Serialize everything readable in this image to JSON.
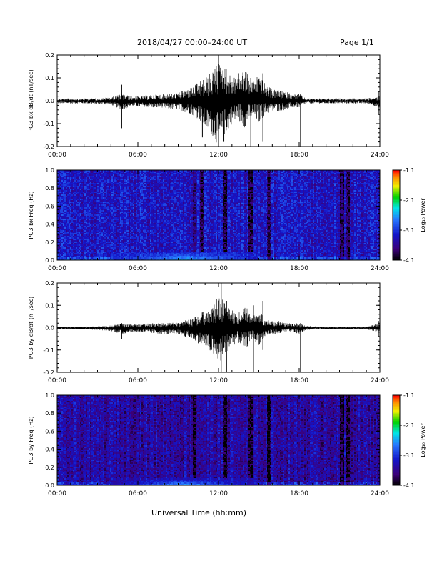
{
  "header": {
    "title": "2018/04/27  00:00–24:00 UT",
    "page": "Page 1/1"
  },
  "xlabel": "Universal Time (hh:mm)",
  "chart_data": [
    {
      "type": "line",
      "ylabel": "PG3 bx dB/dt (nT/sec)",
      "xlim": [
        0,
        24
      ],
      "ylim": [
        -0.2,
        0.2
      ],
      "x_ticks": [
        "00:00",
        "06:00",
        "12:00",
        "18:00",
        "24:00"
      ],
      "y_ticks": [
        "0.2",
        "0.1",
        "0.0",
        "-0.1",
        "-0.2"
      ],
      "envelope": {
        "hours": [
          0,
          1,
          2,
          3,
          4,
          4.8,
          5.5,
          6,
          7,
          8,
          9,
          10,
          10.5,
          11,
          11.5,
          12,
          12.5,
          13,
          13.5,
          14,
          14.5,
          15,
          15.5,
          16,
          16.5,
          17,
          17.5,
          18,
          18.5,
          19,
          20,
          21,
          22,
          23,
          24
        ],
        "upper": [
          0.01,
          0.01,
          0.01,
          0.012,
          0.015,
          0.03,
          0.02,
          0.02,
          0.025,
          0.03,
          0.035,
          0.06,
          0.08,
          0.1,
          0.13,
          0.17,
          0.15,
          0.1,
          0.12,
          0.14,
          0.08,
          0.12,
          0.07,
          0.05,
          0.045,
          0.04,
          0.03,
          0.03,
          0.01,
          0.01,
          0.01,
          0.01,
          0.01,
          0.01,
          0.02
        ],
        "lower": [
          -0.012,
          -0.012,
          -0.012,
          -0.015,
          -0.018,
          -0.04,
          -0.025,
          -0.025,
          -0.03,
          -0.035,
          -0.04,
          -0.06,
          -0.08,
          -0.12,
          -0.15,
          -0.2,
          -0.15,
          -0.1,
          -0.09,
          -0.12,
          -0.07,
          -0.1,
          -0.06,
          -0.05,
          -0.045,
          -0.04,
          -0.03,
          -0.03,
          -0.012,
          -0.012,
          -0.012,
          -0.012,
          -0.012,
          -0.012,
          -0.03
        ]
      },
      "spikes": [
        {
          "hour": 4.8,
          "min": -0.12,
          "max": 0.07
        },
        {
          "hour": 10.8,
          "min": -0.16,
          "max": 0.06
        },
        {
          "hour": 12.0,
          "min": -0.2,
          "max": 0.2
        },
        {
          "hour": 12.4,
          "min": -0.18,
          "max": 0.1
        },
        {
          "hour": 14.4,
          "min": -0.2,
          "max": 0.1
        },
        {
          "hour": 15.3,
          "min": -0.18,
          "max": 0.12
        },
        {
          "hour": 18.1,
          "min": -0.2,
          "max": 0.03
        },
        {
          "hour": 23.9,
          "min": -0.06,
          "max": 0.04
        }
      ]
    },
    {
      "type": "heatmap",
      "ylabel": "PG3 bx Freq (Hz)",
      "xlim": [
        0,
        24
      ],
      "ylim": [
        0,
        1.0
      ],
      "x_ticks": [
        "00:00",
        "06:00",
        "12:00",
        "18:00",
        "24:00"
      ],
      "y_ticks": [
        "1.0",
        "0.8",
        "0.6",
        "0.4",
        "0.2",
        "0.0"
      ],
      "colorbar": {
        "label": "Log₁₀ Power",
        "range": [
          -4.1,
          -1.1
        ],
        "ticks": [
          "-1.1",
          "-2.1",
          "-3.1",
          "-4.1"
        ]
      },
      "background_log_power": -3.3,
      "low_frequency_enhancement": {
        "hours": [
          4,
          15
        ],
        "max_freq": 0.1,
        "peak_log_power": -2.5
      },
      "dark_stripes_hours": [
        10.2,
        10.8,
        12.5,
        14.4,
        15.8,
        21.2,
        21.6
      ]
    },
    {
      "type": "line",
      "ylabel": "PG3 by dB/dt (nT/sec)",
      "xlim": [
        0,
        24
      ],
      "ylim": [
        -0.2,
        0.2
      ],
      "x_ticks": [
        "00:00",
        "06:00",
        "12:00",
        "18:00",
        "24:00"
      ],
      "y_ticks": [
        "0.2",
        "0.1",
        "0.0",
        "-0.1",
        "-0.2"
      ],
      "envelope": {
        "hours": [
          0,
          1,
          2,
          3,
          4,
          4.8,
          5.5,
          6,
          7,
          8,
          9,
          10,
          10.5,
          11,
          11.5,
          12,
          12.5,
          13,
          13.5,
          14,
          14.5,
          15,
          15.5,
          16,
          16.5,
          17,
          17.5,
          18,
          18.5,
          19,
          20,
          21,
          22,
          23,
          24
        ],
        "upper": [
          0.005,
          0.005,
          0.005,
          0.006,
          0.01,
          0.02,
          0.015,
          0.015,
          0.02,
          0.02,
          0.025,
          0.04,
          0.06,
          0.08,
          0.1,
          0.14,
          0.12,
          0.08,
          0.07,
          0.1,
          0.05,
          0.08,
          0.04,
          0.03,
          0.03,
          0.02,
          0.02,
          0.02,
          0.008,
          0.006,
          0.005,
          0.005,
          0.005,
          0.005,
          0.02
        ],
        "lower": [
          -0.008,
          -0.008,
          -0.008,
          -0.01,
          -0.015,
          -0.03,
          -0.02,
          -0.02,
          -0.025,
          -0.03,
          -0.03,
          -0.05,
          -0.07,
          -0.09,
          -0.12,
          -0.17,
          -0.12,
          -0.08,
          -0.07,
          -0.1,
          -0.05,
          -0.08,
          -0.04,
          -0.03,
          -0.03,
          -0.02,
          -0.02,
          -0.03,
          -0.01,
          -0.008,
          -0.008,
          -0.008,
          -0.008,
          -0.008,
          -0.02
        ]
      },
      "spikes": [
        {
          "hour": 4.8,
          "min": -0.05,
          "max": 0.02
        },
        {
          "hour": 12.2,
          "min": -0.2,
          "max": 0.2
        },
        {
          "hour": 12.6,
          "min": -0.2,
          "max": 0.12
        },
        {
          "hour": 14.6,
          "min": -0.2,
          "max": 0.1
        },
        {
          "hour": 15.3,
          "min": -0.1,
          "max": 0.12
        },
        {
          "hour": 18.1,
          "min": -0.2,
          "max": 0.02
        },
        {
          "hour": 23.9,
          "min": -0.04,
          "max": 0.03
        }
      ]
    },
    {
      "type": "heatmap",
      "ylabel": "PG3 by Freq (Hz)",
      "xlim": [
        0,
        24
      ],
      "ylim": [
        0,
        1.0
      ],
      "x_ticks": [
        "00:00",
        "06:00",
        "12:00",
        "18:00",
        "24:00"
      ],
      "y_ticks": [
        "1.0",
        "0.8",
        "0.6",
        "0.4",
        "0.2",
        "0.0"
      ],
      "colorbar": {
        "label": "Log₁₀ Power",
        "range": [
          -4.1,
          -1.1
        ],
        "ticks": [
          "-1.1",
          "-2.1",
          "-3.1",
          "-4.1"
        ]
      },
      "background_log_power": -3.5,
      "low_frequency_enhancement": {
        "hours": [
          4,
          15
        ],
        "max_freq": 0.08,
        "peak_log_power": -2.6
      },
      "dark_stripes_hours": [
        10.2,
        12.5,
        14.4,
        15.8,
        21.2,
        21.6
      ]
    }
  ]
}
